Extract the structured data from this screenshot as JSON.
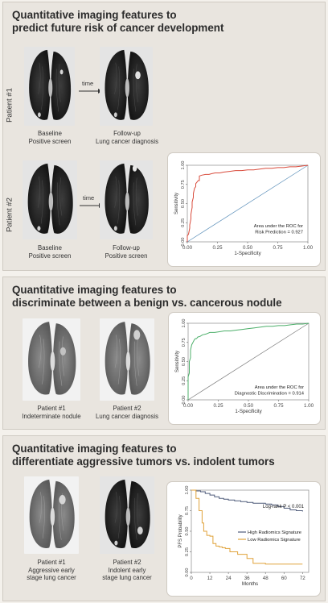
{
  "panels": [
    {
      "title": "Quantitative imaging features to\npredict future risk of cancer development",
      "patients": [
        {
          "label": "Patient #1",
          "arrow_label": "time",
          "left_caption": "Baseline\nPositive screen",
          "right_caption": "Follow-up\nLung cancer diagnosis"
        },
        {
          "label": "Patient #2",
          "arrow_label": "time",
          "left_caption": "Baseline\nPositive screen",
          "right_caption": "Follow-up\nPositive screen"
        }
      ]
    },
    {
      "title": "Quantitative imaging features to\ndiscriminate between a benign vs. cancerous nodule",
      "left_caption": "Patient #1\nIndeterminate nodule",
      "right_caption": "Patient #2\nLung cancer diagnosis"
    },
    {
      "title": "Quantitative imaging features to\ndifferentiate aggressive tumors vs. indolent tumors",
      "left_caption": "Patient #1\nAggressive early\nstage lung cancer",
      "right_caption": "Patient #2\nIndolent early\nstage lung cancer"
    }
  ],
  "chart_data": [
    {
      "type": "line",
      "xlabel": "1-Specificity",
      "ylabel": "Sensitivity",
      "xlim": [
        0,
        1
      ],
      "ylim": [
        0,
        1
      ],
      "xticks": [
        "0.00",
        "0.25",
        "0.50",
        "0.75",
        "1.00"
      ],
      "yticks": [
        "0.00",
        "0.25",
        "0.50",
        "0.75",
        "1.00"
      ],
      "annotation": [
        "Area under the ROC for",
        "Risk Prediction = 0.927"
      ],
      "colors": {
        "curve": "#d94c3d",
        "reference": "#5b8fb9"
      },
      "series": [
        {
          "x": [
            0,
            0,
            0.01,
            0.02,
            0.02,
            0.03,
            0.03,
            0.04,
            0.04,
            0.05,
            0.05,
            0.06,
            0.07,
            0.07,
            0.08,
            0.09,
            0.1,
            0.1,
            0.12,
            0.15,
            0.18,
            0.2,
            0.23,
            0.27,
            0.3,
            0.35,
            0.4,
            0.45,
            0.5,
            0.55,
            0.6,
            0.65,
            0.7,
            0.75,
            0.8,
            0.85,
            0.9,
            0.95,
            1.0
          ],
          "y": [
            0,
            0.08,
            0.1,
            0.18,
            0.22,
            0.3,
            0.36,
            0.45,
            0.52,
            0.58,
            0.63,
            0.7,
            0.72,
            0.76,
            0.78,
            0.8,
            0.8,
            0.86,
            0.87,
            0.88,
            0.88,
            0.89,
            0.9,
            0.9,
            0.91,
            0.92,
            0.93,
            0.93,
            0.94,
            0.94,
            0.95,
            0.96,
            0.96,
            0.97,
            0.97,
            0.98,
            0.98,
            0.99,
            1.0
          ]
        }
      ]
    },
    {
      "type": "line",
      "xlabel": "1-Specificity",
      "ylabel": "Sensitivity",
      "xlim": [
        0,
        1
      ],
      "ylim": [
        0,
        1
      ],
      "xticks": [
        "0.00",
        "0.25",
        "0.50",
        "0.75",
        "1.00"
      ],
      "yticks": [
        "0.00",
        "0.25",
        "0.50",
        "0.75",
        "1.00"
      ],
      "annotation": [
        "Area under the ROC for",
        "Diagnostic Discrimination = 0.914"
      ],
      "colors": {
        "curve": "#4caf6a",
        "reference": "#7a7a7a"
      },
      "series": [
        {
          "x": [
            0,
            0,
            0.01,
            0.01,
            0.02,
            0.02,
            0.03,
            0.04,
            0.05,
            0.06,
            0.07,
            0.08,
            0.1,
            0.12,
            0.15,
            0.18,
            0.22,
            0.26,
            0.3,
            0.35,
            0.4,
            0.45,
            0.5,
            0.55,
            0.6,
            0.65,
            0.7,
            0.75,
            0.8,
            0.85,
            0.9,
            0.95,
            1.0
          ],
          "y": [
            0,
            0.3,
            0.35,
            0.5,
            0.55,
            0.65,
            0.72,
            0.75,
            0.78,
            0.8,
            0.8,
            0.82,
            0.83,
            0.85,
            0.86,
            0.88,
            0.88,
            0.89,
            0.9,
            0.9,
            0.91,
            0.92,
            0.93,
            0.94,
            0.95,
            0.96,
            0.96,
            0.97,
            0.97,
            0.98,
            0.99,
            0.99,
            1.0
          ]
        }
      ]
    },
    {
      "type": "line",
      "xlabel": "Months",
      "ylabel": "PFS Probability",
      "xlim": [
        0,
        76
      ],
      "ylim": [
        0,
        1
      ],
      "xticks": [
        "0",
        "12",
        "24",
        "36",
        "48",
        "60",
        "72"
      ],
      "yticks": [
        "0.00",
        "0.25",
        "0.50",
        "0.75",
        "1.00"
      ],
      "annotation": [
        "Log-rank P < 0.001"
      ],
      "legend_position": "right",
      "colors": {
        "high": "#4f5b7a",
        "low": "#e0a23a"
      },
      "series": [
        {
          "name": "High Radiomics Signature",
          "x": [
            0,
            3,
            6,
            9,
            12,
            15,
            18,
            21,
            24,
            28,
            32,
            36,
            40,
            44,
            48,
            52,
            56,
            60,
            64,
            68,
            72
          ],
          "y": [
            1.0,
            0.99,
            0.98,
            0.96,
            0.94,
            0.92,
            0.9,
            0.89,
            0.88,
            0.87,
            0.86,
            0.85,
            0.84,
            0.84,
            0.83,
            0.82,
            0.8,
            0.78,
            0.76,
            0.75,
            0.74
          ]
        },
        {
          "name": "Low Radiomics Signature",
          "x": [
            0,
            3,
            5,
            7,
            8,
            10,
            12,
            14,
            16,
            18,
            20,
            22,
            25,
            30,
            36,
            40,
            48,
            55,
            60,
            72
          ],
          "y": [
            1.0,
            0.9,
            0.75,
            0.6,
            0.5,
            0.45,
            0.44,
            0.35,
            0.32,
            0.31,
            0.3,
            0.29,
            0.25,
            0.22,
            0.17,
            0.11,
            0.1,
            0.1,
            0.1,
            0.1
          ]
        }
      ]
    }
  ]
}
